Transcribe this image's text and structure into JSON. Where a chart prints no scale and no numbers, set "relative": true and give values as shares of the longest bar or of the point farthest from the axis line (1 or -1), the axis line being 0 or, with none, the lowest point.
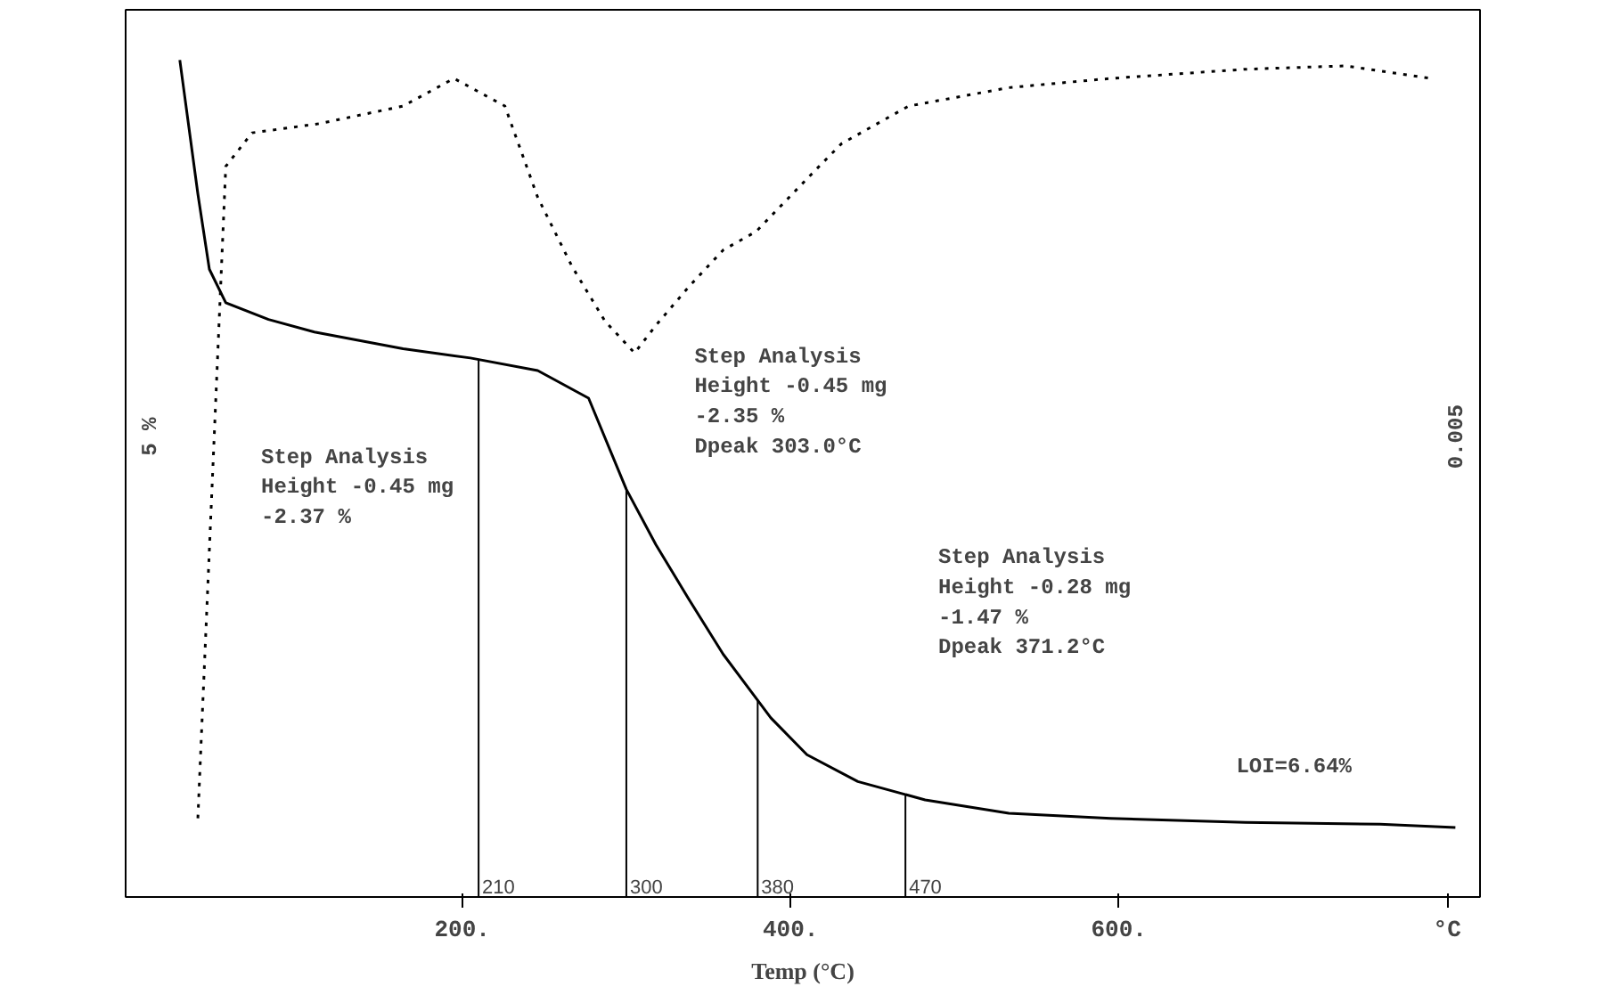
{
  "chart_data": {
    "type": "line",
    "relative": true,
    "xlabel": "Temp (°C)",
    "xlim": [
      -5,
      820
    ],
    "xticks": [
      {
        "value": 200,
        "label": "200."
      },
      {
        "value": 400,
        "label": "400."
      },
      {
        "value": 600,
        "label": "600."
      },
      {
        "value": 800,
        "label": "°C"
      }
    ],
    "grid": false,
    "series": [
      {
        "color": "#000000",
        "line_style": "solid",
        "x": [
          28,
          39,
          46,
          56,
          82,
          110,
          164,
          205,
          246,
          277,
          300,
          318,
          338,
          359,
          388,
          410,
          441,
          482,
          533,
          595,
          677,
          759,
          805
        ],
        "values": [
          1.0,
          0.84,
          0.75,
          0.71,
          0.69,
          0.675,
          0.655,
          0.644,
          0.629,
          0.596,
          0.487,
          0.421,
          0.356,
          0.29,
          0.214,
          0.17,
          0.138,
          0.116,
          0.1,
          0.094,
          0.089,
          0.087,
          0.083
        ]
      },
      {
        "color": "#000000",
        "line_style": "dotted",
        "x": [
          39,
          56,
          72,
          113,
          164,
          195,
          226,
          246,
          267,
          287,
          305,
          318,
          338,
          359,
          379,
          410,
          431,
          472,
          533,
          595,
          677,
          738,
          790
        ],
        "values": [
          0.094,
          0.873,
          0.913,
          0.924,
          0.945,
          0.978,
          0.945,
          0.836,
          0.753,
          0.688,
          0.65,
          0.683,
          0.729,
          0.773,
          0.795,
          0.858,
          0.9,
          0.945,
          0.967,
          0.978,
          0.989,
          0.993,
          0.978
        ]
      }
    ],
    "ref_lines": [
      {
        "axis": "x",
        "value": 210,
        "label": "210"
      },
      {
        "axis": "x",
        "value": 300,
        "label": "300"
      },
      {
        "axis": "x",
        "value": 380,
        "label": "380"
      },
      {
        "axis": "x",
        "value": 470,
        "label": "470"
      }
    ],
    "annotations": [
      "Step Analysis\nHeight -0.45 mg\n        -2.37 %",
      "Step Analysis\nHeight -0.45 mg\n        -2.35 %\nDpeak  303.0°C",
      "Step Analysis\nHeight -0.28 mg\n        -1.47 %\nDpeak  371.2°C",
      "LOI=6.64%",
      "5 %",
      "0.005"
    ]
  }
}
